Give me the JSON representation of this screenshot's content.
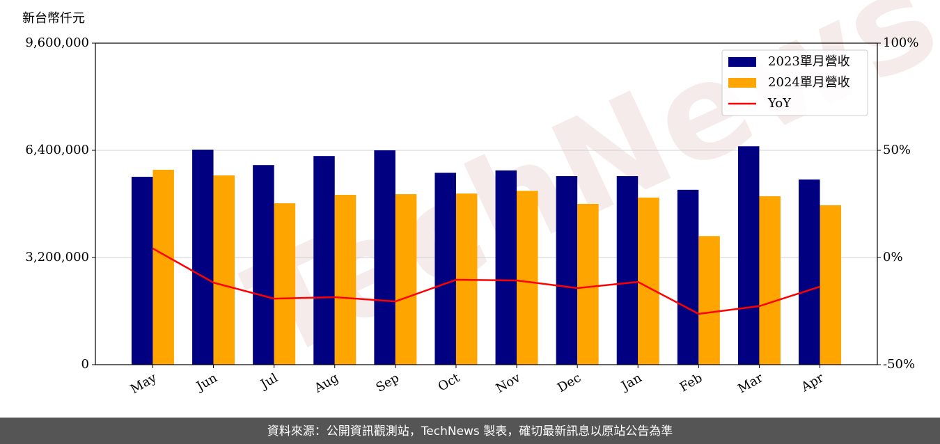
{
  "chart_data": {
    "type": "bar_line",
    "y_label": "新台幣仟元",
    "watermark": "TechNews",
    "footer": "資料來源：公開資訊觀測站，TechNews 製表，確切最新訊息以原站公告為準",
    "categories": [
      "May",
      "Jun",
      "Jul",
      "Aug",
      "Sep",
      "Oct",
      "Nov",
      "Dec",
      "Jan",
      "Feb",
      "Mar",
      "Apr"
    ],
    "series": [
      {
        "name": "2023單月營收",
        "color": "#000080",
        "values": [
          5610000,
          6420000,
          5960000,
          6230000,
          6400000,
          5730000,
          5800000,
          5630000,
          5630000,
          5220000,
          6520000,
          5530000
        ]
      },
      {
        "name": "2024單月營收",
        "color": "#ffa500",
        "values": [
          5820000,
          5650000,
          4820000,
          5070000,
          5090000,
          5110000,
          5190000,
          4800000,
          4990000,
          3840000,
          5030000,
          4760000
        ]
      },
      {
        "name": "YoY",
        "color": "#ff0000",
        "axis": "y2",
        "values": [
          4.2,
          -11.7,
          -19.2,
          -18.5,
          -20.5,
          -10.4,
          -10.7,
          -14.3,
          -11.4,
          -26.3,
          -22.7,
          -13.6
        ]
      }
    ],
    "ylim": [
      0,
      9600000
    ],
    "yticks": [
      {
        "value": 0,
        "label": "0"
      },
      {
        "value": 3200000,
        "label": "3,200,000"
      },
      {
        "value": 6400000,
        "label": "6,400,000"
      },
      {
        "value": 9600000,
        "label": "9,600,000"
      }
    ],
    "y2lim": [
      -50,
      100
    ],
    "y2ticks": [
      {
        "value": -50,
        "label": "-50%"
      },
      {
        "value": 0,
        "label": "0%"
      },
      {
        "value": 50,
        "label": "50%"
      },
      {
        "value": 100,
        "label": "100%"
      }
    ],
    "grid": true,
    "legend": "upper right"
  }
}
